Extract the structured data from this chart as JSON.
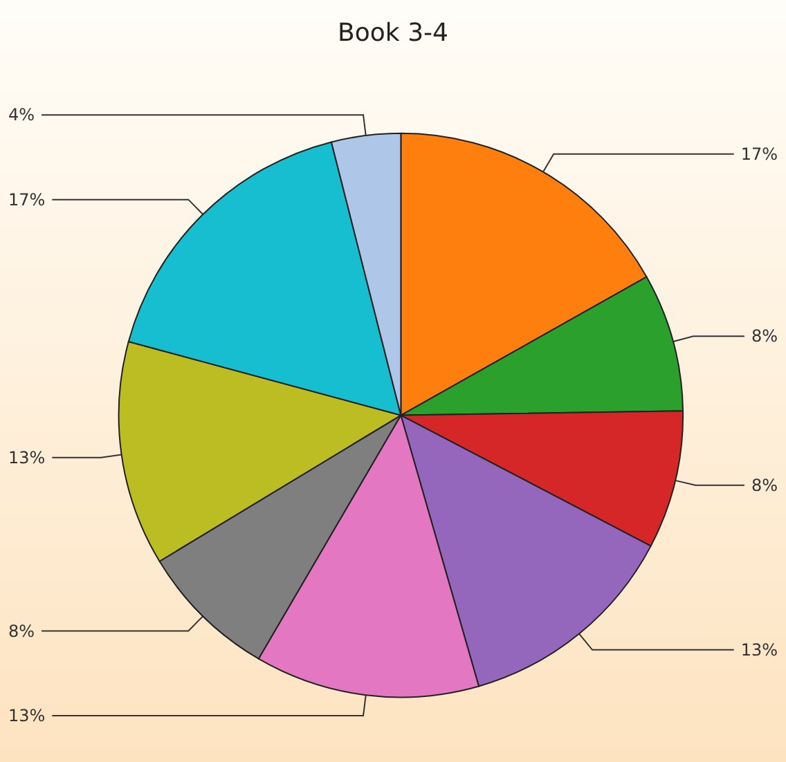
{
  "chart_data": {
    "type": "pie",
    "title": "Book 3-4",
    "categories": [
      null,
      null,
      null,
      null,
      null,
      null,
      null,
      null,
      null
    ],
    "values": [
      17,
      8,
      8,
      13,
      13,
      8,
      13,
      17,
      4
    ],
    "value_labels": [
      "17%",
      "8%",
      "8%",
      "13%",
      "13%",
      "8%",
      "13%",
      "17%",
      "4%"
    ],
    "colors": [
      "#ff7f0e",
      "#2ca02c",
      "#d62728",
      "#9467bd",
      "#e377c2",
      "#7f7f7f",
      "#bcbd22",
      "#17becf",
      "#aec7e8"
    ]
  }
}
